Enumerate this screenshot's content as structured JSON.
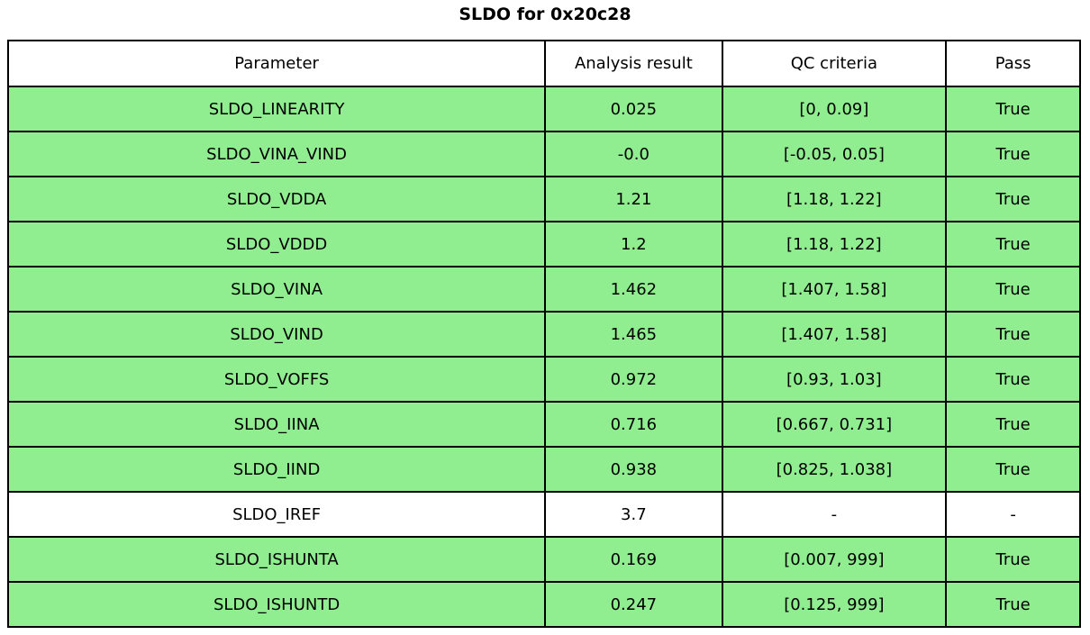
{
  "title": "SLDO for 0x20c28",
  "colors": {
    "pass_green": "#90EE90",
    "row_white": "#FFFFFF",
    "border_black": "#000000",
    "background": "#FFFFFF"
  },
  "chart_data": {
    "type": "table",
    "title": "SLDO for 0x20c28",
    "columns": [
      "Parameter",
      "Analysis result",
      "QC criteria",
      "Pass"
    ],
    "rows": [
      [
        "SLDO_LINEARITY",
        "0.025",
        "[0, 0.09]",
        "True"
      ],
      [
        "SLDO_VINA_VIND",
        "-0.0",
        "[-0.05, 0.05]",
        "True"
      ],
      [
        "SLDO_VDDA",
        "1.21",
        "[1.18, 1.22]",
        "True"
      ],
      [
        "SLDO_VDDD",
        "1.2",
        "[1.18, 1.22]",
        "True"
      ],
      [
        "SLDO_VINA",
        "1.462",
        "[1.407, 1.58]",
        "True"
      ],
      [
        "SLDO_VIND",
        "1.465",
        "[1.407, 1.58]",
        "True"
      ],
      [
        "SLDO_VOFFS",
        "0.972",
        "[0.93, 1.03]",
        "True"
      ],
      [
        "SLDO_IINA",
        "0.716",
        "[0.667, 0.731]",
        "True"
      ],
      [
        "SLDO_IIND",
        "0.938",
        "[0.825, 1.038]",
        "True"
      ],
      [
        "SLDO_IREF",
        "3.7",
        "-",
        "-"
      ],
      [
        "SLDO_ISHUNTA",
        "0.169",
        "[0.007, 999]",
        "True"
      ],
      [
        "SLDO_ISHUNTD",
        "0.247",
        "[0.125, 999]",
        "True"
      ]
    ],
    "row_highlight_green": [
      true,
      true,
      true,
      true,
      true,
      true,
      true,
      true,
      true,
      false,
      true,
      true
    ],
    "layout": {
      "header_background": "#FFFFFF",
      "pass_row_background": "#90EE90",
      "neutral_row_background": "#FFFFFF",
      "grid": true,
      "legend": "none"
    }
  }
}
